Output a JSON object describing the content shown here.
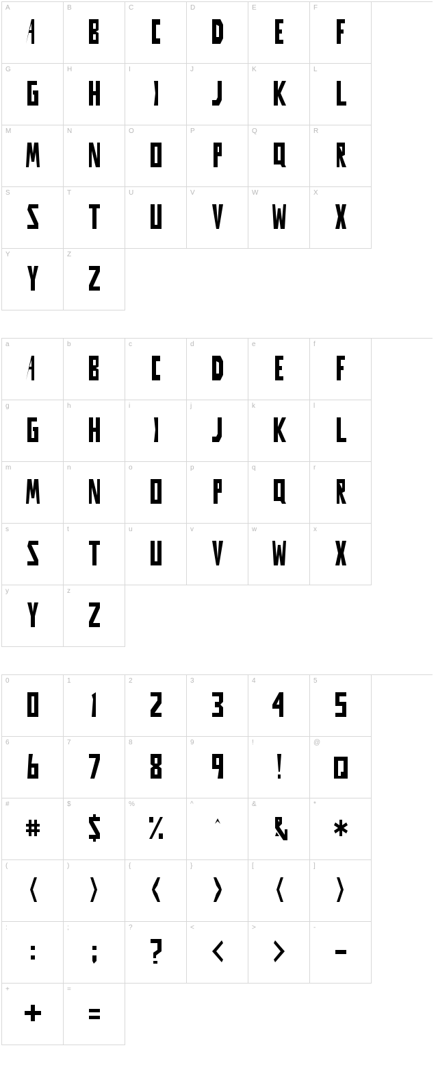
{
  "sections": [
    {
      "rows": [
        [
          {
            "label": "A",
            "glyph": "A"
          },
          {
            "label": "B",
            "glyph": "B"
          },
          {
            "label": "C",
            "glyph": "C"
          },
          {
            "label": "D",
            "glyph": "D"
          },
          {
            "label": "E",
            "glyph": "E"
          },
          {
            "label": "F",
            "glyph": "F"
          },
          {
            "label": "G",
            "glyph": "G"
          }
        ],
        [
          {
            "label": "H",
            "glyph": "H"
          },
          {
            "label": "I",
            "glyph": "I"
          },
          {
            "label": "J",
            "glyph": "J"
          },
          {
            "label": "K",
            "glyph": "K"
          },
          {
            "label": "L",
            "glyph": "L"
          },
          {
            "label": "M",
            "glyph": "M"
          },
          {
            "label": "N",
            "glyph": "N"
          }
        ],
        [
          {
            "label": "O",
            "glyph": "O"
          },
          {
            "label": "P",
            "glyph": "P"
          },
          {
            "label": "Q",
            "glyph": "Q"
          },
          {
            "label": "R",
            "glyph": "R"
          },
          {
            "label": "S",
            "glyph": "S"
          },
          {
            "label": "T",
            "glyph": "T"
          },
          {
            "label": "U",
            "glyph": "U"
          }
        ],
        [
          {
            "label": "V",
            "glyph": "V"
          },
          {
            "label": "W",
            "glyph": "W"
          },
          {
            "label": "X",
            "glyph": "X"
          },
          {
            "label": "Y",
            "glyph": "Y"
          },
          {
            "label": "Z",
            "glyph": "Z"
          }
        ]
      ]
    },
    {
      "rows": [
        [
          {
            "label": "a",
            "glyph": "A"
          },
          {
            "label": "b",
            "glyph": "B"
          },
          {
            "label": "c",
            "glyph": "C"
          },
          {
            "label": "d",
            "glyph": "D"
          },
          {
            "label": "e",
            "glyph": "E"
          },
          {
            "label": "f",
            "glyph": "F"
          },
          {
            "label": "g",
            "glyph": "G"
          }
        ],
        [
          {
            "label": "h",
            "glyph": "H"
          },
          {
            "label": "i",
            "glyph": "I"
          },
          {
            "label": "j",
            "glyph": "J"
          },
          {
            "label": "k",
            "glyph": "K"
          },
          {
            "label": "l",
            "glyph": "L"
          },
          {
            "label": "m",
            "glyph": "M"
          },
          {
            "label": "n",
            "glyph": "N"
          }
        ],
        [
          {
            "label": "o",
            "glyph": "O"
          },
          {
            "label": "p",
            "glyph": "P"
          },
          {
            "label": "q",
            "glyph": "Q"
          },
          {
            "label": "r",
            "glyph": "R"
          },
          {
            "label": "s",
            "glyph": "S"
          },
          {
            "label": "t",
            "glyph": "T"
          },
          {
            "label": "u",
            "glyph": "U"
          }
        ],
        [
          {
            "label": "v",
            "glyph": "V"
          },
          {
            "label": "w",
            "glyph": "W"
          },
          {
            "label": "x",
            "glyph": "X"
          },
          {
            "label": "y",
            "glyph": "Y"
          },
          {
            "label": "z",
            "glyph": "Z"
          }
        ]
      ]
    },
    {
      "rows": [
        [
          {
            "label": "0",
            "glyph": "0"
          },
          {
            "label": "1",
            "glyph": "1"
          },
          {
            "label": "2",
            "glyph": "2"
          },
          {
            "label": "3",
            "glyph": "3"
          },
          {
            "label": "4",
            "glyph": "4"
          },
          {
            "label": "5",
            "glyph": "5"
          },
          {
            "label": "6",
            "glyph": "6"
          }
        ],
        [
          {
            "label": "7",
            "glyph": "7"
          },
          {
            "label": "8",
            "glyph": "8"
          },
          {
            "label": "9",
            "glyph": "9"
          },
          {
            "label": "!",
            "glyph": "!"
          },
          {
            "label": "@",
            "glyph": "@"
          },
          {
            "label": "#",
            "glyph": "#"
          },
          {
            "label": "$",
            "glyph": "$"
          }
        ],
        [
          {
            "label": "%",
            "glyph": "%"
          },
          {
            "label": "^",
            "glyph": "^"
          },
          {
            "label": "&",
            "glyph": "&"
          },
          {
            "label": "*",
            "glyph": "*"
          },
          {
            "label": "(",
            "glyph": "("
          },
          {
            "label": ")",
            "glyph": ")"
          },
          {
            "label": "{",
            "glyph": "{"
          }
        ],
        [
          {
            "label": "}",
            "glyph": "}"
          },
          {
            "label": "[",
            "glyph": "["
          },
          {
            "label": "]",
            "glyph": "]"
          },
          {
            "label": ":",
            "glyph": ":"
          },
          {
            "label": ";",
            "glyph": ";"
          },
          {
            "label": "?",
            "glyph": "?"
          },
          {
            "label": "<",
            "glyph": "<"
          }
        ],
        [
          {
            "label": ">",
            "glyph": ">"
          },
          {
            "label": "-",
            "glyph": "-"
          },
          {
            "label": "+",
            "glyph": "+"
          },
          {
            "label": "=",
            "glyph": "="
          }
        ]
      ]
    }
  ],
  "colors": {
    "border": "#d8d8d8",
    "label": "#b8b8b8",
    "glyph": "#000000",
    "background": "#ffffff"
  },
  "cell_size": 90,
  "glyph_style": "angular-stylized"
}
